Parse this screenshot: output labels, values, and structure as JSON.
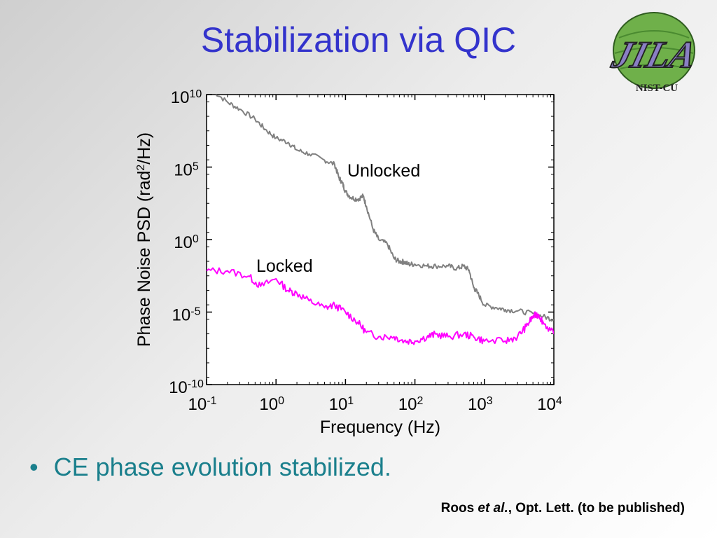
{
  "slide": {
    "title": "Stabilization via QIC",
    "bullet": "CE phase evolution stabilized.",
    "citation": {
      "author": "Roos",
      "etal": "et al.",
      "rest": ", Opt. Lett. (to be published)"
    },
    "logo": {
      "text": "JILA",
      "subtext": "NIST-CU",
      "icon": "jila-logo",
      "colors": {
        "letters": "#8a7fc4",
        "globe": "#6fb04a",
        "outline": "#222222"
      }
    }
  },
  "chart_data": {
    "type": "line",
    "xlabel": "Frequency (Hz)",
    "ylabel_parts": [
      "Phase Noise PSD (rad",
      "2",
      "/Hz)"
    ],
    "xscale": "log",
    "yscale": "log",
    "xlim": [
      0.1,
      10000
    ],
    "ylim": [
      1e-10,
      10000000000.0
    ],
    "x_ticks": [
      {
        "base": "10",
        "exp": "-1",
        "value": 0.1
      },
      {
        "base": "10",
        "exp": "0",
        "value": 1
      },
      {
        "base": "10",
        "exp": "1",
        "value": 10
      },
      {
        "base": "10",
        "exp": "2",
        "value": 100
      },
      {
        "base": "10",
        "exp": "3",
        "value": 1000
      },
      {
        "base": "10",
        "exp": "4",
        "value": 10000
      }
    ],
    "y_ticks": [
      {
        "base": "10",
        "exp": "10",
        "value": 10000000000.0
      },
      {
        "base": "10",
        "exp": "5",
        "value": 100000.0
      },
      {
        "base": "10",
        "exp": "0",
        "value": 1
      },
      {
        "base": "10",
        "exp": "-5",
        "value": 1e-05
      },
      {
        "base": "10",
        "exp": "-10",
        "value": 1e-10
      }
    ],
    "grid": false,
    "series": [
      {
        "name": "Unlocked",
        "color": "#808080",
        "x": [
          0.12,
          0.2,
          0.3,
          0.5,
          0.7,
          1,
          1.5,
          2,
          3,
          5,
          7,
          8,
          9,
          10,
          12,
          15,
          18,
          20,
          25,
          30,
          40,
          50,
          60,
          70,
          80,
          100,
          150,
          200,
          300,
          400,
          500,
          600,
          700,
          800,
          1000,
          1500,
          2000,
          3000,
          5000,
          7000,
          10000
        ],
        "y": [
          20000000000,
          3000000000,
          1000000000,
          200000000,
          40000000,
          10000000,
          5000000,
          1500000,
          800000,
          300000,
          150000,
          20000,
          8000,
          2000,
          800,
          600,
          1000,
          200,
          5,
          1,
          0.5,
          0.05,
          0.03,
          0.03,
          0.02,
          0.02,
          0.015,
          0.015,
          0.015,
          0.01,
          0.015,
          0.008,
          0.0005,
          0.0002,
          3e-05,
          2e-05,
          1.5e-05,
          1.2e-05,
          8e-06,
          5e-06,
          3e-06
        ]
      },
      {
        "name": "Locked",
        "color": "#ff00ff",
        "x": [
          0.1,
          0.2,
          0.4,
          0.6,
          1,
          1.5,
          2,
          3,
          5,
          7,
          10,
          15,
          20,
          30,
          50,
          70,
          100,
          150,
          200,
          300,
          500,
          700,
          1000,
          2000,
          3000,
          4000,
          5000,
          6000,
          7000,
          10000
        ],
        "y": [
          0.007,
          0.007,
          0.003,
          0.0006,
          0.002,
          0.0003,
          0.0002,
          6e-05,
          2e-05,
          3e-05,
          1e-05,
          2e-06,
          4e-07,
          2e-07,
          2e-07,
          1e-07,
          1e-07,
          2e-07,
          3e-07,
          2e-07,
          3e-07,
          2e-07,
          1e-07,
          1e-07,
          2e-07,
          1e-06,
          5e-06,
          7e-06,
          2e-06,
          3e-07
        ]
      }
    ],
    "annotations": [
      {
        "text": "Unlocked",
        "x": 35,
        "y": 50000
      },
      {
        "text": "Locked",
        "x": 1.3,
        "y": 0.01
      }
    ]
  }
}
